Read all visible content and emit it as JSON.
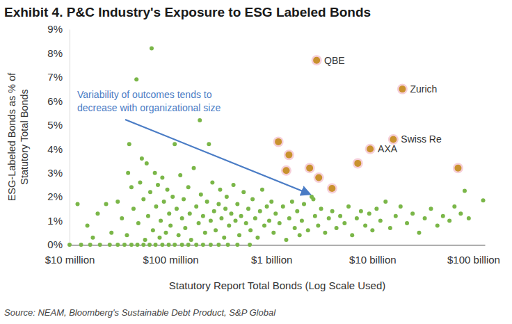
{
  "chart_data": {
    "type": "scatter",
    "title": "Exhibit 4. P&C Industry's Exposure to ESG Labeled Bonds",
    "xlabel": "Statutory Report Total Bonds (Log Scale Used)",
    "ylabel": [
      "ESG-Labeled Bonds as % of",
      "Statutory Total Bonds"
    ],
    "annotation": [
      "Variability of outcomes tends to",
      "decrease with organizational size"
    ],
    "source": "Source: NEAM, Bloomberg's Sustainable Debt Product, S&P Global",
    "log": "x",
    "grid": false,
    "xlim": [
      10000000.0,
      130000000000.0
    ],
    "xticks": [
      {
        "value": 10000000.0,
        "label": "$10 million"
      },
      {
        "value": 100000000.0,
        "label": "$100 million"
      },
      {
        "value": 1000000000.0,
        "label": "$1 billion"
      },
      {
        "value": 10000000000.0,
        "label": "$10 billion"
      },
      {
        "value": 100000000000.0,
        "label": "$100 billion"
      }
    ],
    "ylim": [
      0,
      9
    ],
    "yticks": [
      {
        "value": 0,
        "label": "0%"
      },
      {
        "value": 1,
        "label": "1%"
      },
      {
        "value": 2,
        "label": "2%"
      },
      {
        "value": 3,
        "label": "3%"
      },
      {
        "value": 4,
        "label": "4%"
      },
      {
        "value": 5,
        "label": "5%"
      },
      {
        "value": 6,
        "label": "6%"
      },
      {
        "value": 7,
        "label": "7%"
      },
      {
        "value": 8,
        "label": "8%"
      },
      {
        "value": 9,
        "label": "9%"
      }
    ],
    "series": [
      {
        "color": "#7ab648",
        "marker": "circle",
        "x": [
          10000000.0,
          13000000.0,
          16000000.0,
          20000000.0,
          25000000.0,
          30000000.0,
          35000000.0,
          41000000.0,
          47000000.0,
          54000000.0,
          62000000.0,
          71000000.0,
          83000000.0,
          96000000.0,
          110000000.0,
          130000000.0,
          150000000.0,
          180000000.0,
          210000000.0,
          250000000.0,
          300000000.0,
          370000000.0,
          460000000.0,
          610000000.0,
          12000000.0,
          15000000.0,
          17000000.0,
          19000000.0,
          23000000.0,
          26000000.0,
          30000000.0,
          33000000.0,
          37000000.0,
          38000000.0,
          39000000.0,
          41000000.0,
          43000000.0,
          46000000.0,
          48000000.0,
          50000000.0,
          52000000.0,
          54000000.0,
          56000000.0,
          58000000.0,
          60000000.0,
          63000000.0,
          65000000.0,
          67000000.0,
          70000000.0,
          72000000.0,
          75000000.0,
          78000000.0,
          80000000.0,
          83000000.0,
          86000000.0,
          90000000.0,
          93000000.0,
          97000000.0,
          100000000.0,
          105000000.0,
          110000000.0,
          115000000.0,
          120000000.0,
          125000000.0,
          130000000.0,
          135000000.0,
          140000000.0,
          150000000.0,
          155000000.0,
          160000000.0,
          170000000.0,
          180000000.0,
          190000000.0,
          195000000.0,
          200000000.0,
          210000000.0,
          220000000.0,
          230000000.0,
          240000000.0,
          250000000.0,
          260000000.0,
          270000000.0,
          280000000.0,
          300000000.0,
          310000000.0,
          320000000.0,
          340000000.0,
          350000000.0,
          360000000.0,
          380000000.0,
          400000000.0,
          420000000.0,
          440000000.0,
          460000000.0,
          480000000.0,
          500000000.0,
          530000000.0,
          560000000.0,
          590000000.0,
          620000000.0,
          650000000.0,
          690000000.0,
          730000000.0,
          770000000.0,
          810000000.0,
          850000000.0,
          900000000.0,
          950000000.0,
          1000000000.0,
          1050000000.0,
          1100000000.0,
          1200000000.0,
          1300000000.0,
          1400000000.0,
          1500000000.0,
          1600000000.0,
          1700000000.0,
          1800000000.0,
          1900000000.0,
          2000000000.0,
          2100000000.0,
          2300000000.0,
          2500000000.0,
          2700000000.0,
          2900000000.0,
          3100000000.0,
          3400000000.0,
          3700000000.0,
          4000000000.0,
          4400000000.0,
          4800000000.0,
          5300000000.0,
          5800000000.0,
          6300000000.0,
          7000000000.0,
          7700000000.0,
          8500000000.0,
          9300000000.0,
          10000000000.0,
          11000000000.0,
          12000000000.0,
          13500000000.0,
          15000000000.0,
          17000000000.0,
          19000000000.0,
          22000000000.0,
          25000000000.0,
          29000000000.0,
          33000000000.0,
          38000000000.0,
          44000000000.0,
          50000000000.0,
          58000000000.0,
          65000000000.0,
          75000000000.0,
          82000000000.0,
          90000000000.0,
          125000000000.0,
          2600000000.0
        ],
        "values": [
          0,
          0,
          0,
          0,
          0,
          0,
          0,
          0,
          0,
          0,
          0,
          0,
          0,
          0,
          0,
          0,
          0,
          0,
          0,
          0,
          0,
          0,
          0,
          0,
          1.7,
          0.8,
          0.3,
          1.3,
          1.7,
          0.5,
          1.8,
          1.1,
          0.4,
          3.0,
          4.2,
          2.4,
          1.5,
          6.9,
          0.9,
          2.6,
          3.6,
          1.9,
          0.2,
          3.4,
          1.2,
          2.2,
          8.2,
          0.6,
          3.0,
          1.6,
          2.5,
          0.3,
          1.0,
          2.8,
          1.8,
          0.5,
          2.3,
          1.3,
          0.8,
          2.0,
          4.2,
          1.5,
          0.4,
          2.9,
          1.1,
          1.9,
          0.7,
          2.4,
          1.3,
          0.2,
          3.2,
          1.6,
          0.9,
          5.2,
          2.1,
          1.2,
          0.5,
          1.8,
          4.2,
          1.0,
          2.6,
          1.4,
          0.6,
          1.7,
          2.3,
          1.1,
          0.3,
          1.5,
          2.0,
          0.8,
          1.3,
          2.5,
          1.0,
          1.7,
          0.4,
          1.2,
          2.2,
          0.9,
          1.5,
          0.6,
          1.9,
          1.1,
          0.3,
          1.4,
          2.3,
          0.8,
          1.6,
          1.0,
          1.8,
          0.5,
          1.3,
          0.9,
          1.6,
          0.2,
          1.1,
          1.8,
          0.7,
          1.4,
          0.4,
          1.0,
          1.7,
          0.6,
          2.0,
          1.2,
          0.8,
          1.5,
          0.5,
          1.1,
          1.4,
          0.7,
          1.2,
          0.9,
          1.6,
          0.4,
          1.1,
          1.4,
          0.8,
          1.3,
          0.6,
          1.5,
          1.0,
          1.8,
          0.7,
          1.2,
          1.6,
          0.9,
          1.3,
          0.5,
          1.1,
          1.5,
          0.8,
          1.2,
          1.0,
          1.6,
          1.3,
          2.25,
          1.1,
          1.85,
          1.9
        ]
      },
      {
        "color": "#c9922e",
        "marker": "circle",
        "x": [
          2800000000.0,
          19800000000.0,
          16100000000.0,
          9500000000.0,
          70500000000.0,
          1170000000.0,
          1490000000.0,
          1400000000.0,
          2390000000.0,
          2940000000.0,
          3980000000.0,
          7160000000.0
        ],
        "values": [
          7.7,
          6.5,
          4.4,
          4.0,
          3.2,
          4.3,
          3.75,
          3.1,
          3.2,
          2.8,
          2.35,
          3.4
        ],
        "labels": [
          "QBE",
          "Zurich",
          "Swiss Re",
          "AXA",
          null,
          null,
          null,
          null,
          null,
          null,
          null,
          null
        ]
      }
    ]
  }
}
